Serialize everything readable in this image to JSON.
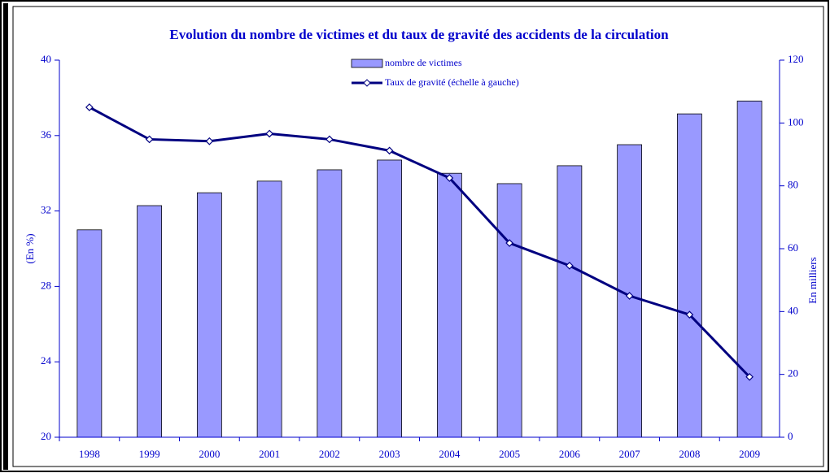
{
  "chart_data": {
    "type": "bar_line",
    "title": "Evolution du nombre de victimes et du taux de gravité des accidents de la circulation",
    "ylabel": "(En %)",
    "y2label": "En milliers",
    "categories": [
      "1998",
      "1999",
      "2000",
      "2001",
      "2002",
      "2003",
      "2004",
      "2005",
      "2006",
      "2007",
      "2008",
      "2009"
    ],
    "series": [
      {
        "name": "nombre de victimes",
        "type": "bar",
        "axis": "y2",
        "color": "#9999ff",
        "values": [
          66,
          73.7,
          77.8,
          81.5,
          85.1,
          88.2,
          84,
          80.7,
          86.4,
          93.1,
          102.9,
          107
        ]
      },
      {
        "name": "Taux de gravité (échelle à gauche)",
        "type": "line",
        "axis": "y",
        "color": "#000080",
        "values": [
          37.5,
          35.8,
          35.7,
          36.1,
          35.8,
          35.2,
          33.75,
          30.3,
          29.1,
          27.5,
          26.5,
          23.2
        ]
      }
    ],
    "ylim": [
      20,
      40
    ],
    "yticks": [
      20,
      24,
      28,
      32,
      36,
      40
    ],
    "y2lim": [
      0,
      120
    ],
    "y2ticks": [
      0,
      20,
      40,
      60,
      80,
      100,
      120
    ],
    "grid": false
  }
}
